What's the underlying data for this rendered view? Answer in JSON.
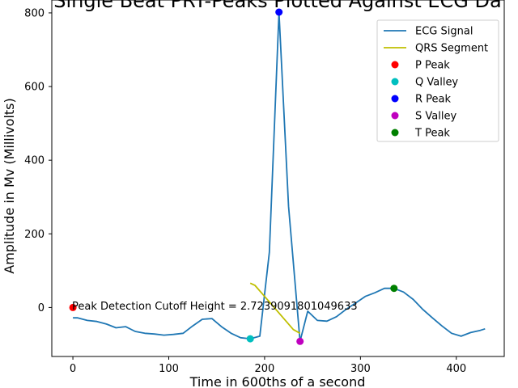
{
  "chart_data": {
    "type": "line",
    "title": "Single Beat PRT-Peaks Plotted Against ECG Da",
    "xlabel": "Time in 600ths of a second",
    "ylabel": "Amplitude in Mv (Millivolts)",
    "xlim": [
      -22,
      450
    ],
    "ylim": [
      -133,
      835
    ],
    "xticks": [
      0,
      100,
      200,
      300,
      400
    ],
    "yticks": [
      0,
      200,
      400,
      600,
      800
    ],
    "grid": false,
    "legend_position": "top-right",
    "annotation": "Peak Detection Cutoff Height = 2.7239091801049633",
    "series": [
      {
        "name": "ECG Signal",
        "kind": "line",
        "color": "#1f77b4",
        "x": [
          0,
          5,
          15,
          25,
          35,
          45,
          55,
          65,
          75,
          85,
          95,
          105,
          115,
          125,
          135,
          145,
          155,
          165,
          175,
          185,
          195,
          205,
          215,
          225,
          237,
          245,
          255,
          265,
          275,
          285,
          295,
          305,
          315,
          325,
          335,
          345,
          355,
          365,
          375,
          385,
          395,
          405,
          415,
          425,
          430
        ],
        "y": [
          -28,
          -28,
          -35,
          -38,
          -45,
          -55,
          -52,
          -65,
          -70,
          -72,
          -75,
          -73,
          -70,
          -50,
          -32,
          -30,
          -52,
          -70,
          -82,
          -85,
          -78,
          150,
          802,
          275,
          -92,
          -10,
          -35,
          -37,
          -25,
          -5,
          12,
          30,
          40,
          52,
          52,
          42,
          22,
          -5,
          -28,
          -50,
          -70,
          -78,
          -68,
          -62,
          -58
        ]
      },
      {
        "name": "QRS Segment",
        "kind": "line",
        "color": "#bfbf00",
        "x": [
          185,
          190,
          200,
          210,
          220,
          230,
          237
        ],
        "y": [
          66,
          60,
          30,
          0,
          -30,
          -60,
          -70
        ]
      },
      {
        "name": "P Peak",
        "kind": "point",
        "color": "#ff0000",
        "x": [
          0
        ],
        "y": [
          0
        ]
      },
      {
        "name": "Q Valley",
        "kind": "point",
        "color": "#00bfbf",
        "x": [
          185
        ],
        "y": [
          -85
        ]
      },
      {
        "name": "R Peak",
        "kind": "point",
        "color": "#0000ff",
        "x": [
          215
        ],
        "y": [
          802
        ]
      },
      {
        "name": "S Valley",
        "kind": "point",
        "color": "#bf00bf",
        "x": [
          237
        ],
        "y": [
          -92
        ]
      },
      {
        "name": "T Peak",
        "kind": "point",
        "color": "#008000",
        "x": [
          335
        ],
        "y": [
          52
        ]
      }
    ]
  }
}
